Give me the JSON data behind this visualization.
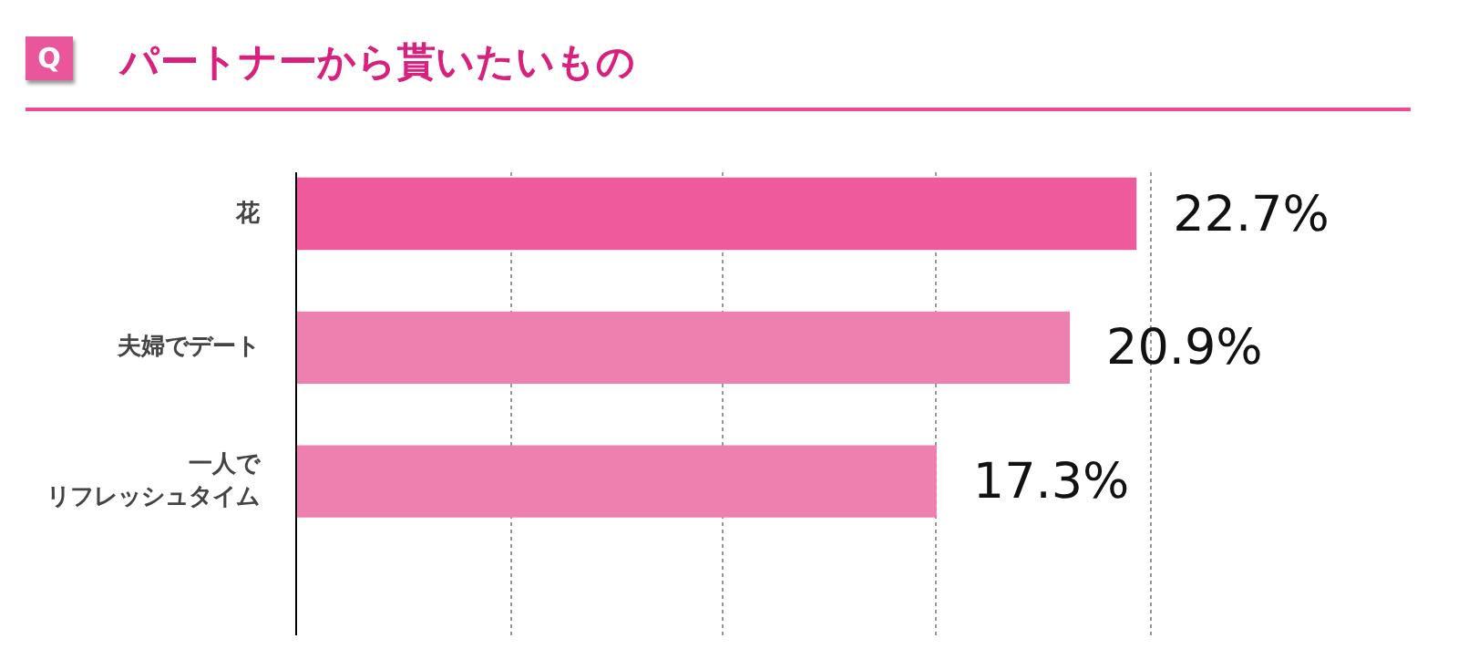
{
  "chart_data": {
    "type": "bar",
    "orientation": "horizontal",
    "title": "パートナーから貰いたいもの",
    "annotations": [
      "Q"
    ],
    "categories": [
      "花",
      "夫婦でデート",
      "一人でリフレッシュタイム"
    ],
    "values": [
      22.7,
      20.9,
      17.3
    ],
    "colors": [
      "#ee5a9b",
      "#ee80b0",
      "#ee80b0"
    ],
    "value_labels": [
      "22.7%",
      "20.9%",
      "17.3%"
    ],
    "xticks": [
      {
        "value": 5.8,
        "label": null
      },
      {
        "value": 11.5,
        "label": null
      },
      {
        "value": 17.3,
        "label": null
      },
      {
        "value": 23.1,
        "label": null
      }
    ],
    "grid": "x",
    "tick_labels": "y"
  }
}
